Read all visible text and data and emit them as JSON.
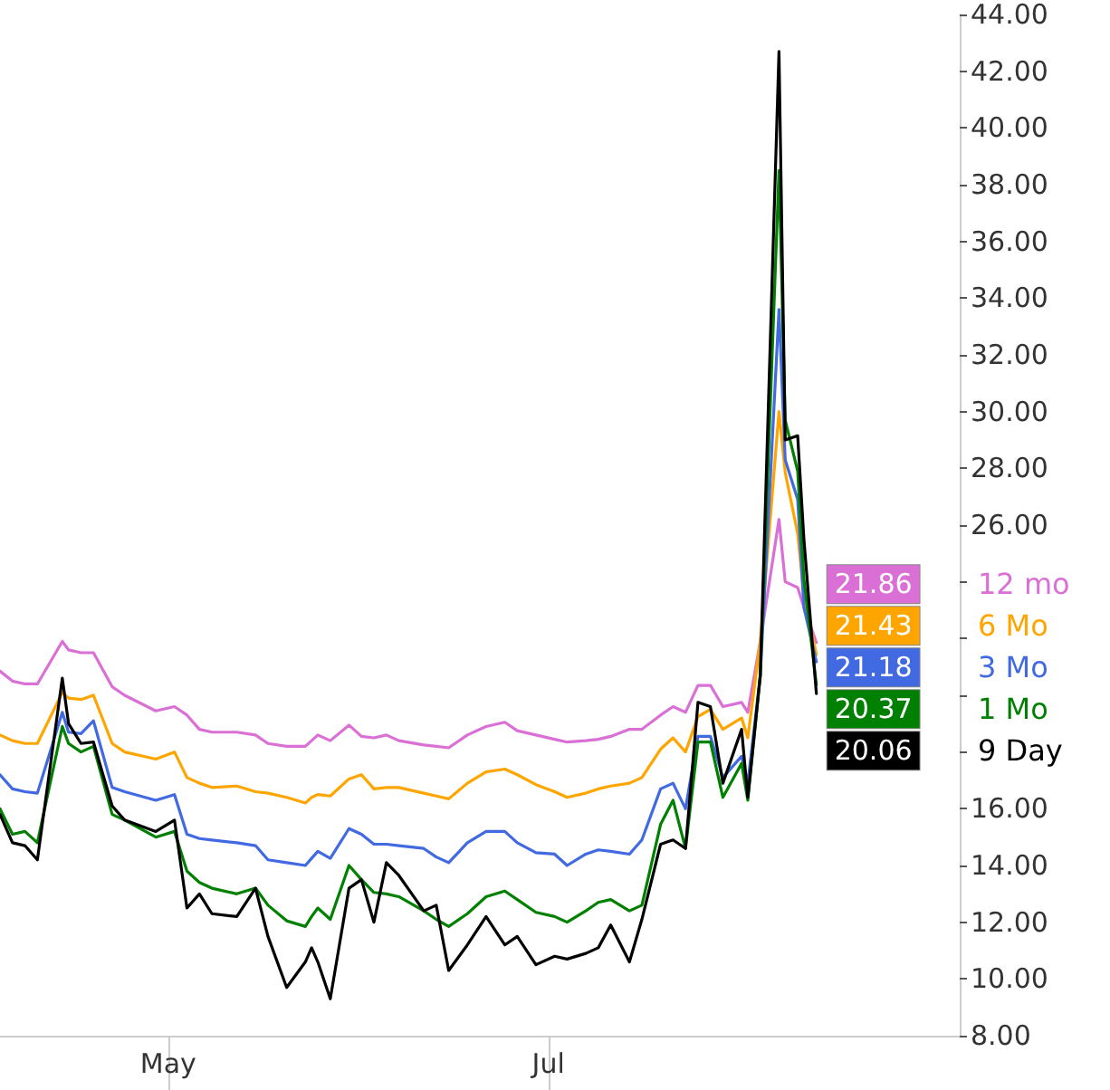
{
  "chart_data": {
    "type": "line",
    "marker": "none",
    "legend": "right",
    "x": [
      "--04-04",
      "--04-06",
      "--04-08",
      "--04-10",
      "--04-14",
      "--04-15",
      "--04-17",
      "--04-19",
      "--04-22",
      "--04-24",
      "--04-29",
      "--05-02",
      "--05-04",
      "--05-06",
      "--05-08",
      "--05-12",
      "--05-15",
      "--05-17",
      "--05-20",
      "--05-23",
      "--05-24",
      "--05-25",
      "--05-27",
      "--05-30",
      "--06-01",
      "--06-03",
      "--06-05",
      "--06-07",
      "--06-11",
      "--06-13",
      "--06-15",
      "--06-18",
      "--06-21",
      "--06-24",
      "--06-26",
      "--06-29",
      "--07-02",
      "--07-04",
      "--07-07",
      "--07-09",
      "--07-11",
      "--07-14",
      "--07-16",
      "--07-19",
      "--07-21",
      "--07-23",
      "--07-25",
      "--07-27",
      "--07-29",
      "--08-01",
      "--08-02",
      "--08-04",
      "--08-07",
      "--08-08",
      "--08-10",
      "--08-11",
      "--08-13"
    ],
    "xlim": [
      "--04-04",
      "--09-05"
    ],
    "xticks": [
      {
        "value": "--05-01",
        "label": "May"
      },
      {
        "value": "--07-01",
        "label": "Jul"
      }
    ],
    "ylim": [
      8,
      44
    ],
    "yticks": [
      {
        "value": 8,
        "label": "8.00"
      },
      {
        "value": 10,
        "label": "10.00"
      },
      {
        "value": 12,
        "label": "12.00"
      },
      {
        "value": 14,
        "label": "14.00"
      },
      {
        "value": 16,
        "label": "16.00"
      },
      {
        "value": 18,
        "label": null
      },
      {
        "value": 20,
        "label": null
      },
      {
        "value": 22,
        "label": null
      },
      {
        "value": 24,
        "label": null
      },
      {
        "value": 26,
        "label": "26.00"
      },
      {
        "value": 28,
        "label": "28.00"
      },
      {
        "value": 30,
        "label": "30.00"
      },
      {
        "value": 32,
        "label": "32.00"
      },
      {
        "value": 34,
        "label": "34.00"
      },
      {
        "value": 36,
        "label": "36.00"
      },
      {
        "value": 38,
        "label": "38.00"
      },
      {
        "value": 40,
        "label": "40.00"
      },
      {
        "value": 42,
        "label": "42.00"
      },
      {
        "value": 44,
        "label": "44.00"
      }
    ],
    "series": [
      {
        "name": "12 mo",
        "color": "#da70d6",
        "values": [
          20.85,
          20.5,
          20.4,
          20.4,
          21.9,
          21.6,
          21.5,
          21.5,
          20.3,
          20.0,
          19.45,
          19.6,
          19.3,
          18.8,
          18.7,
          18.7,
          18.6,
          18.3,
          18.2,
          18.2,
          18.4,
          18.6,
          18.4,
          18.95,
          18.55,
          18.5,
          18.6,
          18.4,
          18.25,
          18.2,
          18.15,
          18.6,
          18.9,
          19.05,
          18.75,
          18.6,
          18.45,
          18.35,
          18.4,
          18.45,
          18.55,
          18.8,
          18.8,
          19.3,
          19.6,
          19.4,
          20.35,
          20.35,
          19.6,
          19.75,
          19.4,
          21.9,
          26.2,
          24.0,
          23.8,
          23.1,
          21.86
        ],
        "value_labels": [
          null,
          null,
          null,
          null,
          null,
          null,
          null,
          null,
          null,
          null,
          null,
          null,
          null,
          null,
          null,
          null,
          null,
          null,
          null,
          null,
          null,
          null,
          null,
          null,
          null,
          null,
          null,
          null,
          null,
          null,
          null,
          null,
          null,
          null,
          null,
          null,
          null,
          null,
          null,
          null,
          null,
          null,
          null,
          null,
          null,
          null,
          null,
          null,
          null,
          null,
          null,
          null,
          null,
          null,
          null,
          null,
          "21.86"
        ]
      },
      {
        "name": "6 Mo",
        "color": "#ffa500",
        "values": [
          18.6,
          18.4,
          18.3,
          18.3,
          20.1,
          19.9,
          19.85,
          20.0,
          18.3,
          18.0,
          17.75,
          18.0,
          17.1,
          16.9,
          16.75,
          16.8,
          16.6,
          16.55,
          16.4,
          16.2,
          16.4,
          16.5,
          16.45,
          17.05,
          17.2,
          16.7,
          16.75,
          16.75,
          16.55,
          16.45,
          16.35,
          16.9,
          17.3,
          17.4,
          17.2,
          16.85,
          16.6,
          16.4,
          16.55,
          16.7,
          16.8,
          16.9,
          17.1,
          18.1,
          18.5,
          18.0,
          19.25,
          19.5,
          18.8,
          19.2,
          18.5,
          21.9,
          30.0,
          27.85,
          25.7,
          23.5,
          21.43
        ],
        "value_labels": [
          null,
          null,
          null,
          null,
          null,
          null,
          null,
          null,
          null,
          null,
          null,
          null,
          null,
          null,
          null,
          null,
          null,
          null,
          null,
          null,
          null,
          null,
          null,
          null,
          null,
          null,
          null,
          null,
          null,
          null,
          null,
          null,
          null,
          null,
          null,
          null,
          null,
          null,
          null,
          null,
          null,
          null,
          null,
          null,
          null,
          null,
          null,
          null,
          null,
          null,
          null,
          null,
          null,
          null,
          null,
          null,
          "21.43"
        ]
      },
      {
        "name": "3 Mo",
        "color": "#4169e1",
        "values": [
          17.2,
          16.7,
          16.6,
          16.55,
          19.4,
          18.7,
          18.65,
          19.1,
          16.75,
          16.6,
          16.3,
          16.5,
          15.1,
          14.95,
          14.9,
          14.8,
          14.7,
          14.2,
          14.1,
          14.0,
          14.25,
          14.5,
          14.25,
          15.3,
          15.1,
          14.75,
          14.75,
          14.7,
          14.6,
          14.3,
          14.1,
          14.8,
          15.2,
          15.2,
          14.8,
          14.45,
          14.4,
          14.0,
          14.4,
          14.55,
          14.5,
          14.4,
          14.9,
          16.7,
          16.9,
          16.0,
          18.55,
          18.55,
          17.1,
          17.85,
          16.9,
          20.7,
          33.6,
          28.3,
          26.9,
          23.1,
          21.18
        ],
        "value_labels": [
          null,
          null,
          null,
          null,
          null,
          null,
          null,
          null,
          null,
          null,
          null,
          null,
          null,
          null,
          null,
          null,
          null,
          null,
          null,
          null,
          null,
          null,
          null,
          null,
          null,
          null,
          null,
          null,
          null,
          null,
          null,
          null,
          null,
          null,
          null,
          null,
          null,
          null,
          null,
          null,
          null,
          null,
          null,
          null,
          null,
          null,
          null,
          null,
          null,
          null,
          null,
          null,
          null,
          null,
          null,
          null,
          "21.18"
        ]
      },
      {
        "name": "1 Mo",
        "color": "#008000",
        "values": [
          16.0,
          15.1,
          15.2,
          14.8,
          18.9,
          18.3,
          18.0,
          18.2,
          15.8,
          15.6,
          15.0,
          15.2,
          13.8,
          13.4,
          13.2,
          13.0,
          13.2,
          12.6,
          12.05,
          11.85,
          12.2,
          12.5,
          12.1,
          14.0,
          13.5,
          13.05,
          13.0,
          12.9,
          12.4,
          12.1,
          11.85,
          12.3,
          12.9,
          13.1,
          12.8,
          12.35,
          12.2,
          12.0,
          12.4,
          12.7,
          12.8,
          12.4,
          12.6,
          15.45,
          16.3,
          14.6,
          18.35,
          18.35,
          16.4,
          17.6,
          16.3,
          20.7,
          38.5,
          29.7,
          27.9,
          24.1,
          20.37
        ],
        "value_labels": [
          null,
          null,
          null,
          null,
          null,
          null,
          null,
          null,
          null,
          null,
          null,
          null,
          null,
          null,
          null,
          null,
          null,
          null,
          null,
          null,
          null,
          null,
          null,
          null,
          null,
          null,
          null,
          null,
          null,
          null,
          null,
          null,
          null,
          null,
          null,
          null,
          null,
          null,
          null,
          null,
          null,
          null,
          null,
          null,
          null,
          null,
          null,
          null,
          null,
          null,
          null,
          null,
          null,
          null,
          null,
          null,
          "20.37"
        ]
      },
      {
        "name": "9 Day",
        "color": "#000000",
        "values": [
          15.8,
          14.8,
          14.7,
          14.2,
          20.6,
          19.0,
          18.3,
          18.35,
          16.1,
          15.6,
          15.2,
          15.6,
          12.5,
          13.0,
          12.3,
          12.2,
          13.2,
          11.5,
          9.7,
          10.6,
          11.1,
          10.6,
          9.3,
          13.2,
          13.5,
          12.0,
          14.1,
          13.65,
          12.4,
          12.6,
          10.3,
          11.2,
          12.2,
          11.2,
          11.5,
          10.5,
          10.8,
          10.7,
          10.9,
          11.1,
          11.9,
          10.6,
          12.1,
          14.75,
          14.9,
          14.6,
          19.75,
          19.6,
          16.9,
          18.8,
          16.4,
          20.7,
          42.7,
          29.0,
          29.15,
          25.5,
          20.06
        ],
        "value_labels": [
          null,
          null,
          null,
          null,
          null,
          null,
          null,
          null,
          null,
          null,
          null,
          null,
          null,
          null,
          null,
          null,
          null,
          null,
          null,
          null,
          null,
          null,
          null,
          null,
          null,
          null,
          null,
          null,
          null,
          null,
          null,
          null,
          null,
          null,
          null,
          null,
          null,
          null,
          null,
          null,
          null,
          null,
          null,
          null,
          null,
          null,
          null,
          null,
          null,
          null,
          null,
          null,
          null,
          null,
          null,
          null,
          "20.06"
        ]
      }
    ]
  }
}
